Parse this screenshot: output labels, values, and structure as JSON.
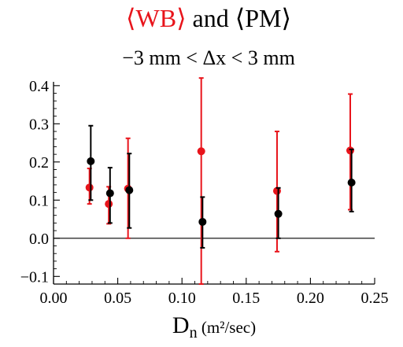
{
  "chart_data": {
    "type": "scatter",
    "title": {
      "part1": "⟨WB⟩",
      "connector": " and ",
      "part2": "⟨PM⟩"
    },
    "subtitle": "−3 mm < Δx < 3 mm",
    "xlabel": {
      "main": "D",
      "subscript": "n",
      "unit": " (m²/sec)"
    },
    "ylabel": "",
    "xlim": [
      0.0,
      0.25
    ],
    "ylim": [
      -0.12,
      0.41
    ],
    "x_ticks": [
      "0.00",
      "0.05",
      "0.10",
      "0.15",
      "0.20",
      "0.25"
    ],
    "x_tick_values": [
      0.0,
      0.05,
      0.1,
      0.15,
      0.2,
      0.25
    ],
    "y_ticks": [
      "−0.1",
      "0.0",
      "0.1",
      "0.2",
      "0.3",
      "0.4"
    ],
    "y_tick_values": [
      -0.1,
      0.0,
      0.1,
      0.2,
      0.3,
      0.4
    ],
    "zero_line": true,
    "grid": false,
    "series": [
      {
        "key": "WB",
        "color": "#e8141b",
        "points": [
          {
            "x": 0.028,
            "y": 0.133,
            "err_low": 0.09,
            "err_high": 0.183
          },
          {
            "x": 0.043,
            "y": 0.09,
            "err_low": 0.038,
            "err_high": 0.135
          },
          {
            "x": 0.058,
            "y": 0.13,
            "err_low": 0.0,
            "err_high": 0.262
          },
          {
            "x": 0.115,
            "y": 0.228,
            "err_low": -0.12,
            "err_high": 0.42
          },
          {
            "x": 0.174,
            "y": 0.124,
            "err_low": -0.035,
            "err_high": 0.28
          },
          {
            "x": 0.231,
            "y": 0.23,
            "err_low": 0.075,
            "err_high": 0.378
          }
        ]
      },
      {
        "key": "PM",
        "color": "#000000",
        "points": [
          {
            "x": 0.029,
            "y": 0.202,
            "err_low": 0.1,
            "err_high": 0.295
          },
          {
            "x": 0.044,
            "y": 0.118,
            "err_low": 0.04,
            "err_high": 0.185
          },
          {
            "x": 0.059,
            "y": 0.126,
            "err_low": 0.027,
            "err_high": 0.222
          },
          {
            "x": 0.116,
            "y": 0.043,
            "err_low": -0.025,
            "err_high": 0.108
          },
          {
            "x": 0.175,
            "y": 0.064,
            "err_low": 0.0,
            "err_high": 0.132
          },
          {
            "x": 0.232,
            "y": 0.146,
            "err_low": 0.07,
            "err_high": 0.233
          }
        ]
      }
    ]
  }
}
